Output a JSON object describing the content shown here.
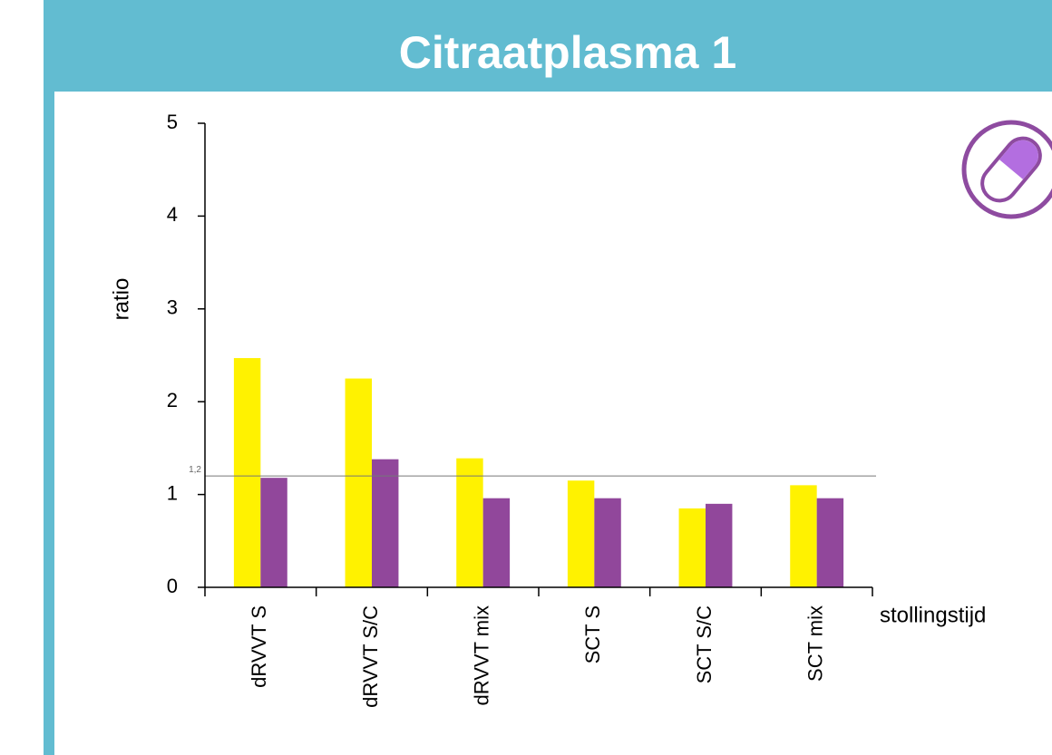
{
  "header": {
    "title": "Citraatplasma 1"
  },
  "chart_data": {
    "type": "bar",
    "categories": [
      "dRVVT S",
      "dRVVT S/C",
      "dRVVT mix",
      "SCT S",
      "SCT S/C",
      "SCT mix"
    ],
    "series": [
      {
        "color": "#fff200",
        "values": [
          2.47,
          2.25,
          1.39,
          1.15,
          0.85,
          1.1
        ]
      },
      {
        "color": "#91479b",
        "values": [
          1.18,
          1.38,
          0.96,
          0.96,
          0.9,
          0.96
        ]
      }
    ],
    "ylim": [
      0,
      5
    ],
    "yticks": [
      0,
      1,
      2,
      3,
      4,
      5
    ],
    "y_label": "ratio",
    "x_label": "stollingstijd",
    "reference_line": {
      "value": 1.2,
      "label": "1,2"
    }
  }
}
